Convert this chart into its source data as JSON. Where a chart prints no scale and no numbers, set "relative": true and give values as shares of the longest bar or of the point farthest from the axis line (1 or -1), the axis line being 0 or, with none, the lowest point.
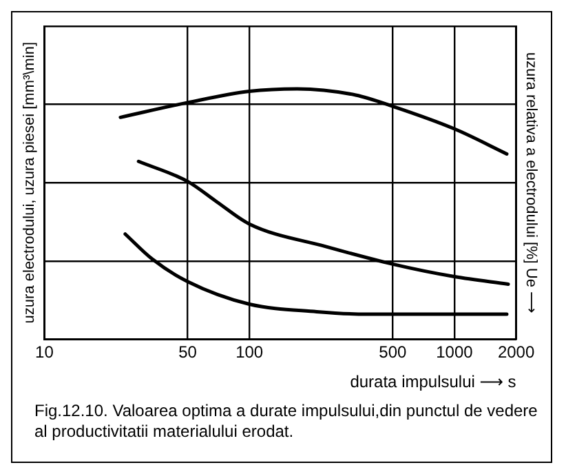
{
  "chart_data": {
    "type": "line",
    "relative": true,
    "xlabel": "durata impulsului ⟶ s",
    "ylabel": "uzura electrodului, uzura piesei [mm³\\min]",
    "y2label": "uzura relativa a electrodului [%] Ue ⟶",
    "log": "x",
    "xlim": [
      10,
      2000
    ],
    "xticks": [
      10,
      50,
      100,
      500,
      1000,
      2000
    ],
    "grid": true,
    "legend": false,
    "marker": "none",
    "line_style": "solid",
    "annotations": [
      "Fig.12.10. Valoarea optima a durate impulsului,din punctul de vedere al productivitatii materialului erodat."
    ],
    "series": [
      {
        "color": "#000000",
        "x": [
          23.5,
          50,
          100,
          171,
          330,
          500,
          1000,
          1800
        ],
        "values": [
          0.886,
          0.945,
          0.99,
          1.0,
          0.975,
          0.93,
          0.84,
          0.74
        ]
      },
      {
        "color": "#000000",
        "x": [
          28.8,
          50,
          69,
          100,
          236,
          500,
          1000,
          1830
        ],
        "values": [
          0.71,
          0.63,
          0.55,
          0.46,
          0.37,
          0.3,
          0.25,
          0.22
        ]
      },
      {
        "color": "#000000",
        "x": [
          24.8,
          33.6,
          50,
          100,
          213,
          371,
          1800
        ],
        "values": [
          0.42,
          0.32,
          0.23,
          0.14,
          0.11,
          0.1,
          0.1
        ]
      }
    ]
  }
}
